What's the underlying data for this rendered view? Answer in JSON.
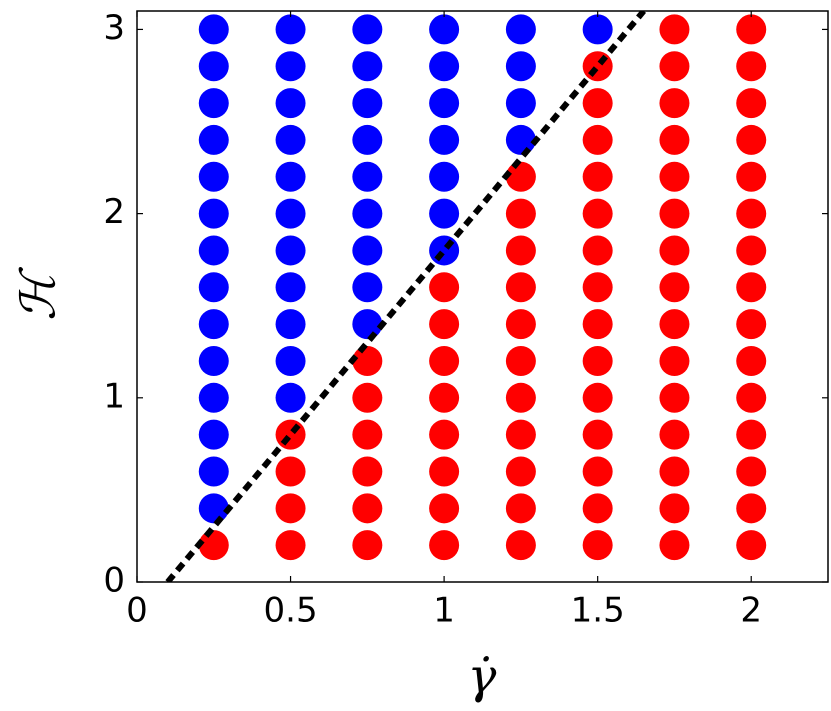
{
  "chart_data": {
    "type": "scatter",
    "x_label": "γ̇",
    "y_label": "ℋ",
    "xlim": [
      0,
      2.25
    ],
    "ylim": [
      0,
      3.1
    ],
    "xticks": [
      0,
      0.5,
      1,
      1.5,
      2
    ],
    "yticks": [
      0,
      1,
      2,
      3
    ],
    "series": [
      {
        "color": "#0000ff",
        "marker": "circle",
        "x": [
          0.25,
          0.25,
          0.25,
          0.25,
          0.25,
          0.25,
          0.25,
          0.25,
          0.25,
          0.25,
          0.25,
          0.25,
          0.25,
          0.25,
          0.5,
          0.5,
          0.5,
          0.5,
          0.5,
          0.5,
          0.5,
          0.5,
          0.5,
          0.5,
          0.5,
          0.75,
          0.75,
          0.75,
          0.75,
          0.75,
          0.75,
          0.75,
          0.75,
          0.75,
          1,
          1,
          1,
          1,
          1,
          1,
          1,
          1.25,
          1.25,
          1.25,
          1.25,
          1.5
        ],
        "y": [
          0.4,
          0.6,
          0.8,
          1,
          1.2,
          1.4,
          1.6,
          1.8,
          2,
          2.2,
          2.4,
          2.6,
          2.8,
          3,
          1,
          1.2,
          1.4,
          1.6,
          1.8,
          2,
          2.2,
          2.4,
          2.6,
          2.8,
          3,
          1.4,
          1.6,
          1.8,
          2,
          2.2,
          2.4,
          2.6,
          2.8,
          3,
          1.8,
          2,
          2.2,
          2.4,
          2.6,
          2.8,
          3,
          2.4,
          2.6,
          2.8,
          3,
          3
        ]
      },
      {
        "color": "#ff0000",
        "marker": "circle",
        "x": [
          0.25,
          0.5,
          0.5,
          0.5,
          0.5,
          0.75,
          0.75,
          0.75,
          0.75,
          0.75,
          0.75,
          1,
          1,
          1,
          1,
          1,
          1,
          1,
          1,
          1.25,
          1.25,
          1.25,
          1.25,
          1.25,
          1.25,
          1.25,
          1.25,
          1.25,
          1.25,
          1.25,
          1.5,
          1.5,
          1.5,
          1.5,
          1.5,
          1.5,
          1.5,
          1.5,
          1.5,
          1.5,
          1.5,
          1.5,
          1.5,
          1.5,
          1.75,
          1.75,
          1.75,
          1.75,
          1.75,
          1.75,
          1.75,
          1.75,
          1.75,
          1.75,
          1.75,
          1.75,
          1.75,
          1.75,
          1.75,
          2,
          2,
          2,
          2,
          2,
          2,
          2,
          2,
          2,
          2,
          2,
          2,
          2,
          2,
          2
        ],
        "y": [
          0.2,
          0.2,
          0.4,
          0.6,
          0.8,
          0.2,
          0.4,
          0.6,
          0.8,
          1,
          1.2,
          0.2,
          0.4,
          0.6,
          0.8,
          1,
          1.2,
          1.4,
          1.6,
          0.2,
          0.4,
          0.6,
          0.8,
          1,
          1.2,
          1.4,
          1.6,
          1.8,
          2,
          2.2,
          0.2,
          0.4,
          0.6,
          0.8,
          1,
          1.2,
          1.4,
          1.6,
          1.8,
          2,
          2.2,
          2.4,
          2.6,
          2.8,
          0.2,
          0.4,
          0.6,
          0.8,
          1,
          1.2,
          1.4,
          1.6,
          1.8,
          2,
          2.2,
          2.4,
          2.6,
          2.8,
          3,
          0.2,
          0.4,
          0.6,
          0.8,
          1,
          1.2,
          1.4,
          1.6,
          1.8,
          2,
          2.2,
          2.4,
          2.6,
          2.8,
          3
        ]
      },
      {
        "color": "#000000",
        "style": "dashed",
        "x": [
          0.1,
          1.65
        ],
        "y": [
          0,
          3.1
        ]
      }
    ]
  }
}
